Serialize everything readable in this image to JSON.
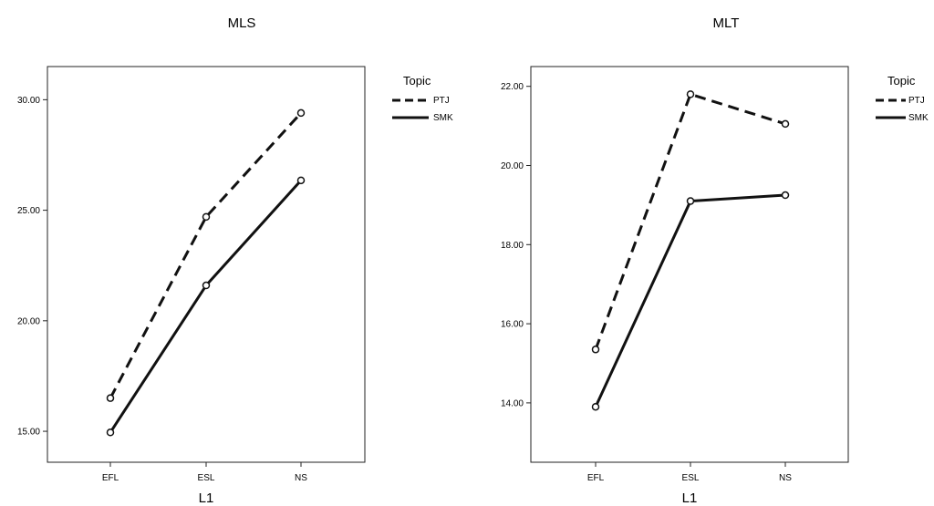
{
  "chart_data": [
    {
      "type": "line",
      "title": "MLS",
      "xlabel": "L1",
      "ylabel": "",
      "categories": [
        "EFL",
        "ESL",
        "NS"
      ],
      "y_ticks": [
        "15.00",
        "20.00",
        "25.00",
        "30.00"
      ],
      "ylim": [
        13.6,
        31.5
      ],
      "grid": false,
      "legend": {
        "title": "Topic",
        "placement": "right"
      },
      "series": [
        {
          "name": "PTJ",
          "style": "dashed",
          "values": [
            16.5,
            24.7,
            29.4
          ]
        },
        {
          "name": "SMK",
          "style": "solid",
          "values": [
            14.95,
            21.6,
            26.35
          ]
        }
      ]
    },
    {
      "type": "line",
      "title": "MLT",
      "xlabel": "L1",
      "ylabel": "",
      "categories": [
        "EFL",
        "ESL",
        "NS"
      ],
      "y_ticks": [
        "14.00",
        "16.00",
        "18.00",
        "20.00",
        "22.00"
      ],
      "ylim": [
        12.5,
        22.5
      ],
      "grid": false,
      "legend": {
        "title": "Topic",
        "placement": "right"
      },
      "series": [
        {
          "name": "PTJ",
          "style": "dashed",
          "values": [
            15.35,
            21.8,
            21.05
          ]
        },
        {
          "name": "SMK",
          "style": "solid",
          "values": [
            13.9,
            19.1,
            19.25
          ]
        }
      ]
    }
  ],
  "colors": {
    "line": "#111111",
    "frame": "#222222",
    "background": "#ffffff"
  }
}
